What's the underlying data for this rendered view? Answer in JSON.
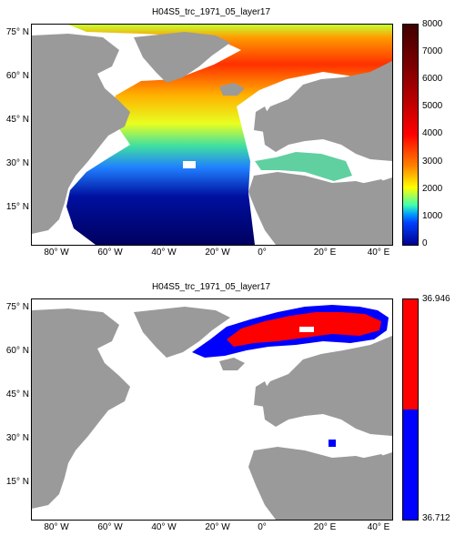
{
  "panels": [
    {
      "title": "H04S5_trc_1971_05_layer17",
      "lat_labels": [
        "75° N",
        "60° N",
        "45° N",
        "30° N",
        "15° N"
      ],
      "lon_labels": [
        "80° W",
        "60° W",
        "40° W",
        "20° W",
        "0°",
        "20° E",
        "40° E"
      ],
      "colorbar": {
        "type": "continuous",
        "range": [
          0,
          8000
        ],
        "tick_labels": [
          "8000",
          "7000",
          "6000",
          "5000",
          "4000",
          "3000",
          "2000",
          "1000",
          "0"
        ]
      }
    },
    {
      "title": "H04S5_trc_1971_05_layer17",
      "lat_labels": [
        "75° N",
        "60° N",
        "45° N",
        "30° N",
        "15° N"
      ],
      "lon_labels": [
        "80° W",
        "60° W",
        "40° W",
        "20° W",
        "0°",
        "20° E",
        "40° E"
      ],
      "colorbar": {
        "type": "two-class",
        "tick_labels": [
          "36.946",
          "36.712"
        ],
        "colors": [
          "#ff0000",
          "#0000ff"
        ]
      }
    }
  ],
  "colors": {
    "land": "#9a9a9a",
    "water": "#ffffff",
    "deep": "#000060",
    "red": "#ff0000",
    "blue": "#0000ff"
  }
}
